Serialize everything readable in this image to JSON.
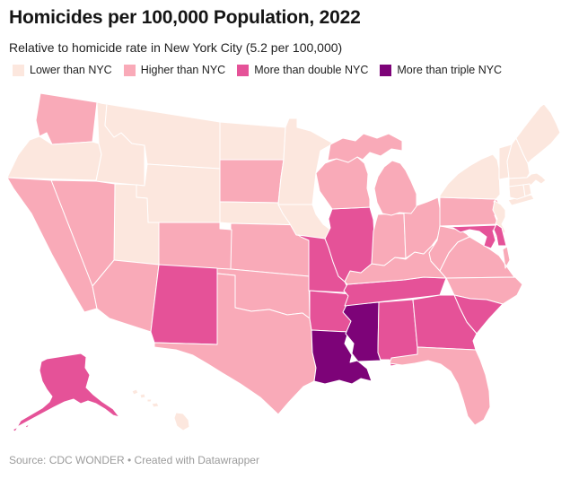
{
  "chart_data": {
    "type": "choropleth",
    "title": "Homicides per 100,000 Population, 2022",
    "subtitle": "Relative to homicide rate in New York City (5.2 per 100,000)",
    "reference_area": "New York City",
    "reference_value_per_100k": 5.2,
    "legend_position": "top",
    "categories": [
      {
        "key": "lower",
        "label": "Lower than NYC",
        "color": "#fce7de"
      },
      {
        "key": "higher",
        "label": "Higher than NYC",
        "color": "#f9aab8"
      },
      {
        "key": "double",
        "label": "More than double NYC",
        "color": "#e55298"
      },
      {
        "key": "triple",
        "label": "More than triple NYC",
        "color": "#7d0378"
      }
    ],
    "states": [
      {
        "id": "AK",
        "name": "Alaska",
        "category": "double"
      },
      {
        "id": "AL",
        "name": "Alabama",
        "category": "double"
      },
      {
        "id": "AR",
        "name": "Arkansas",
        "category": "double"
      },
      {
        "id": "AZ",
        "name": "Arizona",
        "category": "higher"
      },
      {
        "id": "CA",
        "name": "California",
        "category": "higher"
      },
      {
        "id": "CO",
        "name": "Colorado",
        "category": "higher"
      },
      {
        "id": "CT",
        "name": "Connecticut",
        "category": "lower"
      },
      {
        "id": "DE",
        "name": "Delaware",
        "category": "double"
      },
      {
        "id": "FL",
        "name": "Florida",
        "category": "higher"
      },
      {
        "id": "GA",
        "name": "Georgia",
        "category": "double"
      },
      {
        "id": "HI",
        "name": "Hawaii",
        "category": "lower"
      },
      {
        "id": "IA",
        "name": "Iowa",
        "category": "lower"
      },
      {
        "id": "ID",
        "name": "Idaho",
        "category": "lower"
      },
      {
        "id": "IL",
        "name": "Illinois",
        "category": "double"
      },
      {
        "id": "IN",
        "name": "Indiana",
        "category": "higher"
      },
      {
        "id": "KS",
        "name": "Kansas",
        "category": "higher"
      },
      {
        "id": "KY",
        "name": "Kentucky",
        "category": "higher"
      },
      {
        "id": "LA",
        "name": "Louisiana",
        "category": "triple"
      },
      {
        "id": "MA",
        "name": "Massachusetts",
        "category": "lower"
      },
      {
        "id": "MD",
        "name": "Maryland",
        "category": "double"
      },
      {
        "id": "ME",
        "name": "Maine",
        "category": "lower"
      },
      {
        "id": "MI",
        "name": "Michigan",
        "category": "higher"
      },
      {
        "id": "MN",
        "name": "Minnesota",
        "category": "lower"
      },
      {
        "id": "MO",
        "name": "Missouri",
        "category": "double"
      },
      {
        "id": "MS",
        "name": "Mississippi",
        "category": "triple"
      },
      {
        "id": "MT",
        "name": "Montana",
        "category": "lower"
      },
      {
        "id": "NC",
        "name": "North Carolina",
        "category": "higher"
      },
      {
        "id": "ND",
        "name": "North Dakota",
        "category": "lower"
      },
      {
        "id": "NE",
        "name": "Nebraska",
        "category": "lower"
      },
      {
        "id": "NH",
        "name": "New Hampshire",
        "category": "lower"
      },
      {
        "id": "NJ",
        "name": "New Jersey",
        "category": "lower"
      },
      {
        "id": "NM",
        "name": "New Mexico",
        "category": "double"
      },
      {
        "id": "NV",
        "name": "Nevada",
        "category": "higher"
      },
      {
        "id": "NY",
        "name": "New York",
        "category": "lower"
      },
      {
        "id": "OH",
        "name": "Ohio",
        "category": "higher"
      },
      {
        "id": "OK",
        "name": "Oklahoma",
        "category": "higher"
      },
      {
        "id": "OR",
        "name": "Oregon",
        "category": "lower"
      },
      {
        "id": "PA",
        "name": "Pennsylvania",
        "category": "higher"
      },
      {
        "id": "RI",
        "name": "Rhode Island",
        "category": "lower"
      },
      {
        "id": "SC",
        "name": "South Carolina",
        "category": "double"
      },
      {
        "id": "SD",
        "name": "South Dakota",
        "category": "higher"
      },
      {
        "id": "TN",
        "name": "Tennessee",
        "category": "double"
      },
      {
        "id": "TX",
        "name": "Texas",
        "category": "higher"
      },
      {
        "id": "UT",
        "name": "Utah",
        "category": "lower"
      },
      {
        "id": "VA",
        "name": "Virginia",
        "category": "higher"
      },
      {
        "id": "VT",
        "name": "Vermont",
        "category": "lower"
      },
      {
        "id": "WA",
        "name": "Washington",
        "category": "higher"
      },
      {
        "id": "WI",
        "name": "Wisconsin",
        "category": "higher"
      },
      {
        "id": "WV",
        "name": "West Virginia",
        "category": "higher"
      },
      {
        "id": "WY",
        "name": "Wyoming",
        "category": "lower"
      }
    ]
  },
  "footer": {
    "source": "Source: CDC WONDER • Created with Datawrapper"
  }
}
